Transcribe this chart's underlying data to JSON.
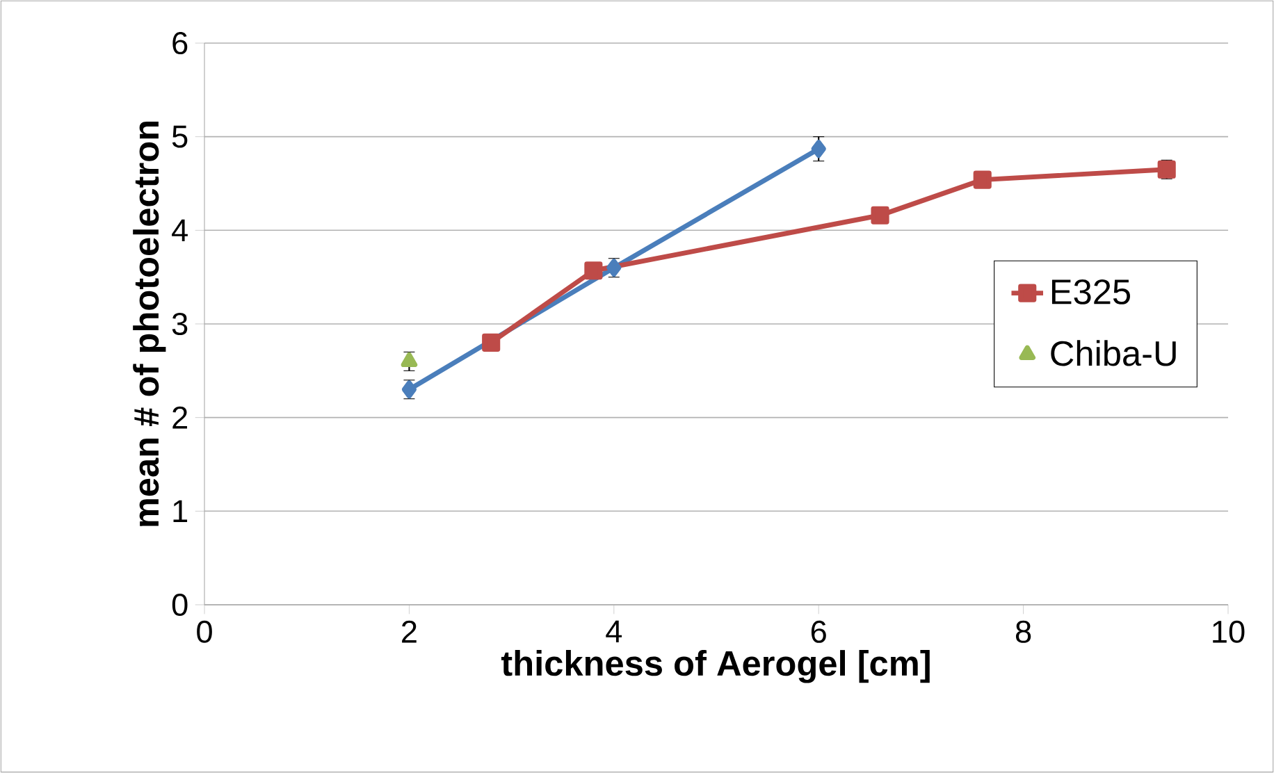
{
  "chart_data": {
    "type": "line",
    "xlabel": "thickness of Aerogel [cm]",
    "ylabel": "mean # of photoelectron",
    "xlim": [
      0,
      10
    ],
    "xticks": [
      0,
      2,
      4,
      6,
      8,
      10
    ],
    "ylim": [
      0,
      6
    ],
    "yticks": [
      0,
      1,
      2,
      3,
      4,
      5,
      6
    ],
    "grid": "y",
    "legend": "right",
    "series": [
      {
        "color": "#4a7ebb",
        "marker": "diamond",
        "x": [
          2,
          4,
          6
        ],
        "values": [
          2.3,
          3.6,
          4.87
        ],
        "errors": [
          0.1,
          0.1,
          0.13
        ]
      },
      {
        "name": "E325",
        "color": "#be4b48",
        "marker": "square",
        "x": [
          2.8,
          3.8,
          6.6,
          7.6,
          9.4
        ],
        "values": [
          2.8,
          3.57,
          4.16,
          4.54,
          4.65
        ],
        "errors": [
          null,
          null,
          null,
          null,
          0.1
        ]
      },
      {
        "name": "Chiba-U",
        "color": "#98b954",
        "marker": "triangle",
        "type": "scatter",
        "x": [
          2
        ],
        "values": [
          2.6
        ],
        "errors": [
          0.1
        ]
      }
    ]
  }
}
